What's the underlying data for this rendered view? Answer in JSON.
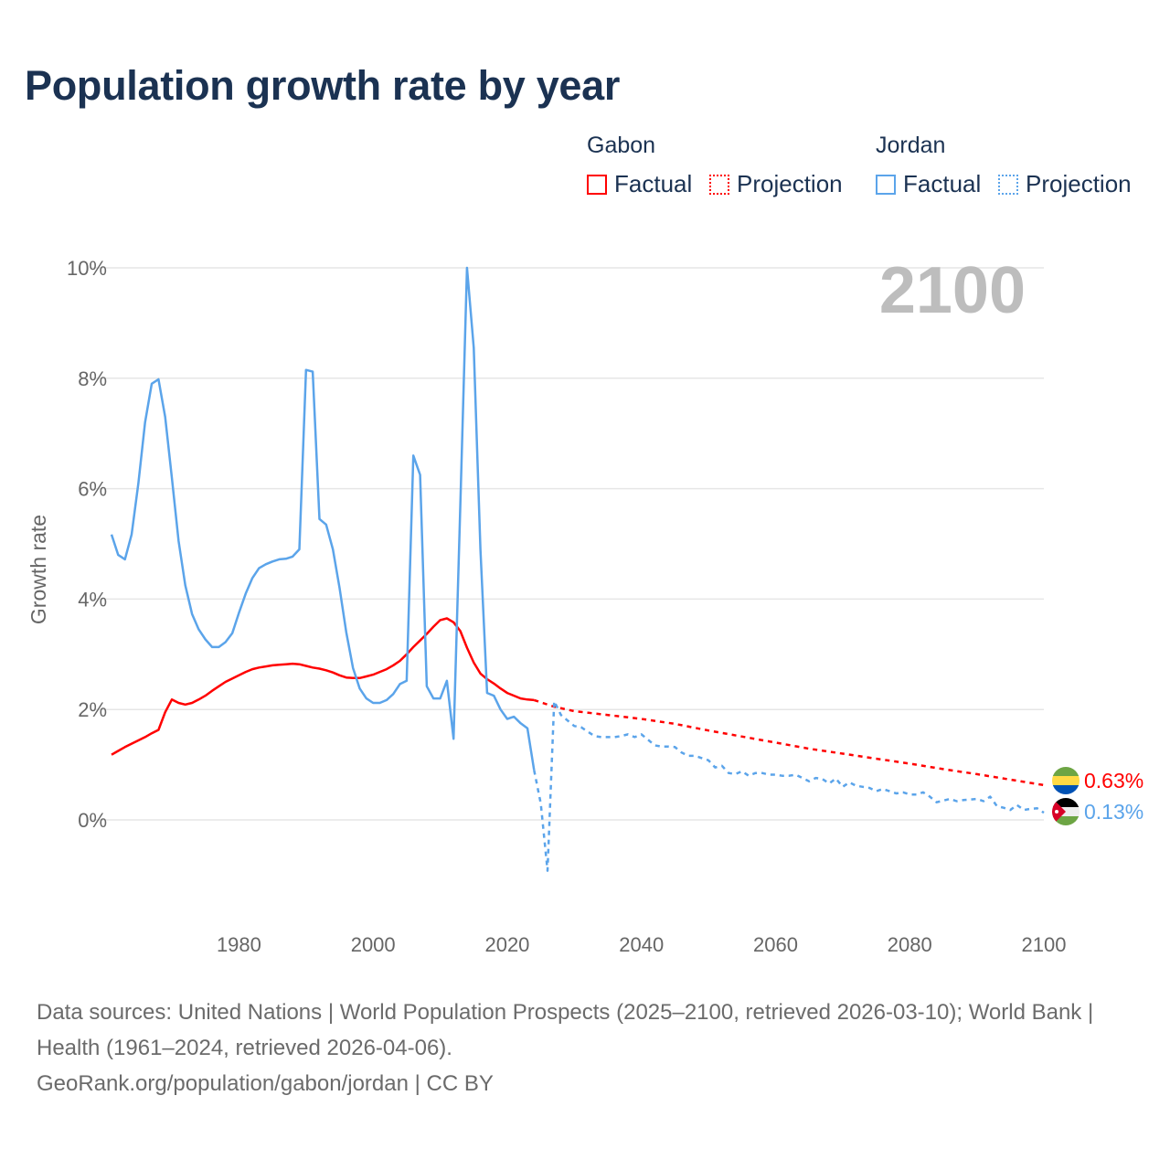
{
  "title": "Population growth rate by year",
  "legend": {
    "groups": [
      {
        "name": "Gabon",
        "factual": "Factual",
        "projection": "Projection",
        "color": "#ff0000"
      },
      {
        "name": "Jordan",
        "factual": "Factual",
        "projection": "Projection",
        "color": "#5ba4ea"
      }
    ]
  },
  "year_label": "2100",
  "end_labels": {
    "gabon": "0.63%",
    "jordan": "0.13%"
  },
  "footer": {
    "sources": "Data sources: United Nations | World Population Prospects (2025–2100, retrieved 2026-03-10); World Bank | Health (1961–2024, retrieved 2026-04-06).",
    "link": "GeoRank.org/population/gabon/jordan | CC BY"
  },
  "chart_data": {
    "type": "line",
    "title": "Population growth rate by year",
    "xlabel": "",
    "ylabel": "Growth rate",
    "xlim": [
      1961,
      2100
    ],
    "ylim": [
      -1.5,
      10.5
    ],
    "x_ticks": [
      "1980",
      "2000",
      "2020",
      "2040",
      "2060",
      "2080",
      "2100"
    ],
    "y_ticks": [
      "0%",
      "2%",
      "4%",
      "6%",
      "8%",
      "10%"
    ],
    "grid": true,
    "series": [
      {
        "name": "Gabon Factual",
        "style": "solid",
        "color": "#ff0000",
        "x": [
          1961,
          1962,
          1963,
          1964,
          1965,
          1966,
          1967,
          1968,
          1969,
          1970,
          1971,
          1972,
          1973,
          1974,
          1975,
          1976,
          1977,
          1978,
          1979,
          1980,
          1981,
          1982,
          1983,
          1984,
          1985,
          1986,
          1987,
          1988,
          1989,
          1990,
          1991,
          1992,
          1993,
          1994,
          1995,
          1996,
          1997,
          1998,
          1999,
          2000,
          2001,
          2002,
          2003,
          2004,
          2005,
          2006,
          2007,
          2008,
          2009,
          2010,
          2011,
          2012,
          2013,
          2014,
          2015,
          2016,
          2017,
          2018,
          2019,
          2020,
          2021,
          2022,
          2023,
          2024
        ],
        "y": [
          1.18,
          1.25,
          1.32,
          1.38,
          1.44,
          1.5,
          1.57,
          1.63,
          1.95,
          2.18,
          2.12,
          2.09,
          2.12,
          2.18,
          2.25,
          2.34,
          2.42,
          2.5,
          2.56,
          2.62,
          2.68,
          2.73,
          2.76,
          2.78,
          2.8,
          2.81,
          2.82,
          2.83,
          2.82,
          2.79,
          2.76,
          2.74,
          2.71,
          2.67,
          2.62,
          2.58,
          2.57,
          2.57,
          2.6,
          2.63,
          2.68,
          2.73,
          2.8,
          2.88,
          3.0,
          3.13,
          3.25,
          3.37,
          3.5,
          3.62,
          3.65,
          3.58,
          3.42,
          3.12,
          2.85,
          2.65,
          2.55,
          2.47,
          2.38,
          2.3,
          2.25,
          2.2,
          2.18,
          2.17
        ]
      },
      {
        "name": "Gabon Projection",
        "style": "dotted",
        "color": "#ff0000",
        "x": [
          2024,
          2027,
          2030,
          2035,
          2040,
          2045,
          2050,
          2055,
          2060,
          2065,
          2070,
          2075,
          2080,
          2085,
          2090,
          2095,
          2100
        ],
        "y": [
          2.17,
          2.05,
          1.97,
          1.9,
          1.83,
          1.74,
          1.62,
          1.51,
          1.4,
          1.29,
          1.2,
          1.11,
          1.02,
          0.92,
          0.83,
          0.73,
          0.63
        ]
      },
      {
        "name": "Jordan Factual",
        "style": "solid",
        "color": "#5ba4ea",
        "x": [
          1961,
          1962,
          1963,
          1964,
          1965,
          1966,
          1967,
          1968,
          1969,
          1970,
          1971,
          1972,
          1973,
          1974,
          1975,
          1976,
          1977,
          1978,
          1979,
          1980,
          1981,
          1982,
          1983,
          1984,
          1985,
          1986,
          1987,
          1988,
          1989,
          1990,
          1991,
          1992,
          1993,
          1994,
          1995,
          1996,
          1997,
          1998,
          1999,
          2000,
          2001,
          2002,
          2003,
          2004,
          2005,
          2006,
          2007,
          2008,
          2009,
          2010,
          2011,
          2012,
          2013,
          2014,
          2015,
          2016,
          2017,
          2018,
          2019,
          2020,
          2021,
          2022,
          2023,
          2024
        ],
        "y": [
          5.17,
          4.8,
          4.72,
          5.17,
          6.1,
          7.2,
          7.9,
          7.98,
          7.3,
          6.2,
          5.05,
          4.25,
          3.73,
          3.45,
          3.27,
          3.13,
          3.13,
          3.22,
          3.38,
          3.75,
          4.1,
          4.38,
          4.56,
          4.63,
          4.68,
          4.72,
          4.73,
          4.77,
          4.9,
          8.15,
          8.12,
          5.45,
          5.35,
          4.9,
          4.2,
          3.4,
          2.75,
          2.38,
          2.2,
          2.12,
          2.12,
          2.17,
          2.28,
          2.46,
          2.52,
          6.6,
          6.25,
          2.42,
          2.2,
          2.2,
          2.52,
          1.47,
          5.7,
          10.0,
          8.55,
          4.9,
          2.3,
          2.25,
          2.0,
          1.83,
          1.87,
          1.75,
          1.66,
          0.9
        ]
      },
      {
        "name": "Jordan Projection",
        "style": "dotted",
        "color": "#5ba4ea",
        "x": [
          2024,
          2025,
          2026,
          2027,
          2028,
          2029,
          2030,
          2031,
          2032,
          2033,
          2034,
          2035,
          2036,
          2037,
          2038,
          2039,
          2040,
          2041,
          2042,
          2043,
          2044,
          2045,
          2046,
          2047,
          2048,
          2049,
          2050,
          2051,
          2052,
          2053,
          2054,
          2055,
          2056,
          2057,
          2058,
          2059,
          2060,
          2061,
          2062,
          2063,
          2064,
          2065,
          2066,
          2067,
          2068,
          2069,
          2070,
          2071,
          2072,
          2073,
          2074,
          2075,
          2076,
          2077,
          2078,
          2079,
          2080,
          2081,
          2082,
          2083,
          2084,
          2085,
          2086,
          2087,
          2088,
          2089,
          2090,
          2091,
          2092,
          2093,
          2094,
          2095,
          2096,
          2097,
          2098,
          2099,
          2100
        ],
        "y": [
          0.9,
          0.3,
          -0.92,
          2.15,
          1.9,
          1.8,
          1.7,
          1.68,
          1.6,
          1.52,
          1.5,
          1.5,
          1.5,
          1.52,
          1.55,
          1.5,
          1.55,
          1.45,
          1.35,
          1.33,
          1.33,
          1.32,
          1.22,
          1.16,
          1.16,
          1.12,
          1.08,
          0.95,
          0.98,
          0.85,
          0.83,
          0.88,
          0.8,
          0.85,
          0.85,
          0.82,
          0.82,
          0.8,
          0.8,
          0.82,
          0.76,
          0.7,
          0.76,
          0.74,
          0.66,
          0.75,
          0.6,
          0.68,
          0.62,
          0.6,
          0.58,
          0.52,
          0.56,
          0.52,
          0.48,
          0.5,
          0.46,
          0.46,
          0.5,
          0.42,
          0.32,
          0.35,
          0.38,
          0.34,
          0.36,
          0.37,
          0.38,
          0.34,
          0.42,
          0.25,
          0.22,
          0.18,
          0.27,
          0.18,
          0.2,
          0.21,
          0.13
        ]
      }
    ]
  }
}
